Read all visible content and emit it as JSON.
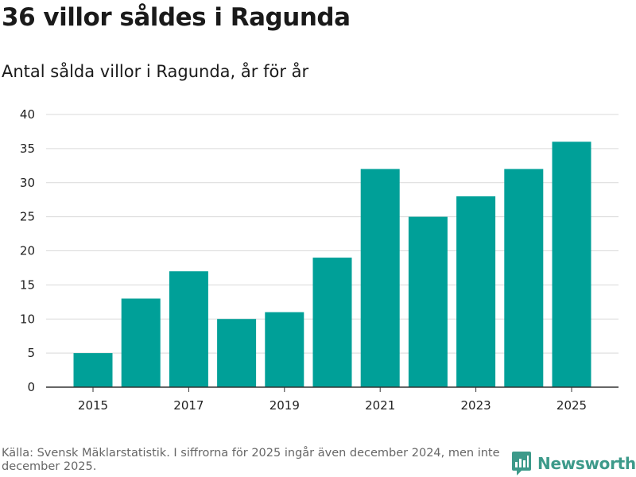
{
  "title": "36 villor såldes i Ragunda",
  "subtitle": "Antal sålda villor i Ragunda, år för år",
  "footer": {
    "source": "Källa: Svensk Mäklarstatistik. I siffrorna för 2025 ingår även december 2024, men inte december 2025."
  },
  "brand": {
    "name": "Newsworthy",
    "logo_icon": "newsworthy-logo-icon",
    "color": "#3d9a8a"
  },
  "colors": {
    "bar": "#00a098",
    "grid": "#d9d9d9",
    "axis": "#333333"
  },
  "chart_data": {
    "type": "bar",
    "title": "36 villor såldes i Ragunda",
    "subtitle": "Antal sålda villor i Ragunda, år för år",
    "xlabel": "",
    "ylabel": "",
    "categories": [
      "2015",
      "2016",
      "2017",
      "2018",
      "2019",
      "2020",
      "2021",
      "2022",
      "2023",
      "2024",
      "2025"
    ],
    "values": [
      5,
      13,
      17,
      10,
      11,
      19,
      32,
      25,
      28,
      32,
      36
    ],
    "x_tick_labels": [
      "2015",
      "2017",
      "2019",
      "2021",
      "2023",
      "2025"
    ],
    "y_ticks": [
      0,
      5,
      10,
      15,
      20,
      25,
      30,
      35,
      40
    ],
    "ylim": [
      0,
      40
    ],
    "grid": true
  }
}
